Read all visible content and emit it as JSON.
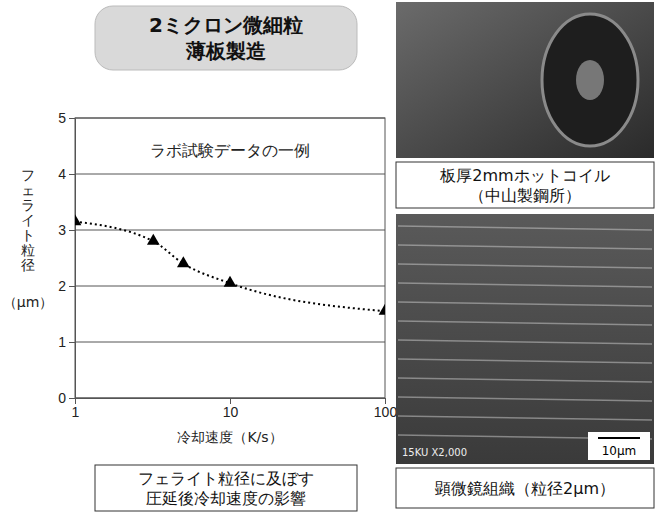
{
  "chart_data": {
    "type": "line",
    "title": "ラボ試験データの一例",
    "xlabel": "冷却速度（K/s）",
    "ylabel": "フェライト粒径（μm）",
    "log": "x",
    "x": [
      1,
      3.2,
      5,
      10,
      100
    ],
    "values": [
      3.15,
      2.8,
      2.4,
      2.05,
      1.55
    ],
    "color": "#000000",
    "marker": "triangle",
    "line_style": "dotted",
    "xlim": [
      1,
      100
    ],
    "xticks": [
      1,
      10,
      100
    ],
    "ylim": [
      0,
      5
    ],
    "yticks": [
      0,
      1,
      2,
      3,
      4,
      5
    ],
    "grid": true
  },
  "panel": {
    "title": [
      "2ミクロン微細粒",
      "薄板製造"
    ],
    "caption": [
      "フェライト粒径に及ぼす",
      "圧延後冷却速度の影響"
    ]
  },
  "photos": [
    {
      "caption": [
        "板厚2mmホットコイル",
        "（中山製鋼所）"
      ]
    },
    {
      "caption": [
        "顕微鏡組織（粒径2μm）"
      ],
      "scale_bar": "10μm",
      "overlay": "15KU X2,000"
    }
  ]
}
